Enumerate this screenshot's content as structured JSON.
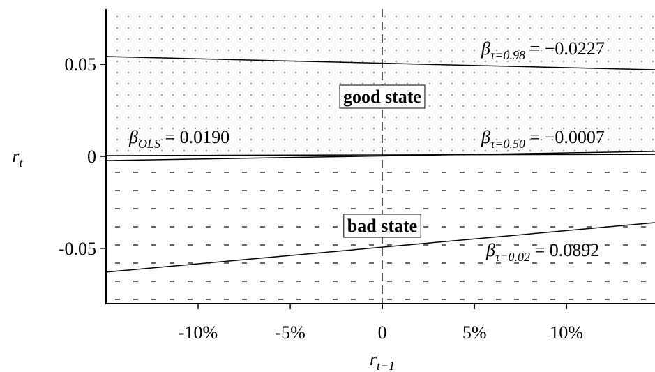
{
  "chart_data": {
    "type": "line",
    "x_label": {
      "main": "r",
      "sub": "t−1"
    },
    "y_label": {
      "main": "r",
      "sub": "t"
    },
    "x": [
      -15,
      14.8
    ],
    "xlim": [
      -15,
      14.8
    ],
    "xticks": [
      {
        "value": -10,
        "label": "-10%"
      },
      {
        "value": -5,
        "label": "-5%"
      },
      0,
      {
        "value": 5,
        "label": "5%"
      },
      {
        "value": 10,
        "label": "10%"
      }
    ],
    "ylim": [
      -0.08,
      0.08
    ],
    "yticks": [
      0.05,
      0,
      -0.05
    ],
    "series": [
      {
        "color": "#000000",
        "values": [
          0.0542,
          0.047
        ]
      },
      {
        "color": "#000000",
        "values": [
          -0.0023,
          0.0027
        ]
      },
      {
        "color": "#000000",
        "values": [
          0.0004,
          0.0011
        ]
      },
      {
        "color": "#000000",
        "values": [
          -0.0629,
          -0.036
        ]
      }
    ],
    "annotations": [
      {
        "symbol": "β",
        "sub": "τ=0.98",
        "text": " = −0.0227"
      },
      {
        "symbol": "β",
        "sub": "OLS",
        "text": " = 0.0190"
      },
      {
        "symbol": "β",
        "sub": "τ=0.50",
        "text": " = −0.0007"
      },
      {
        "symbol": "β",
        "sub": "τ=0.02",
        "text": " = 0.0892"
      }
    ],
    "regions": [
      "good state",
      "bad state"
    ]
  }
}
